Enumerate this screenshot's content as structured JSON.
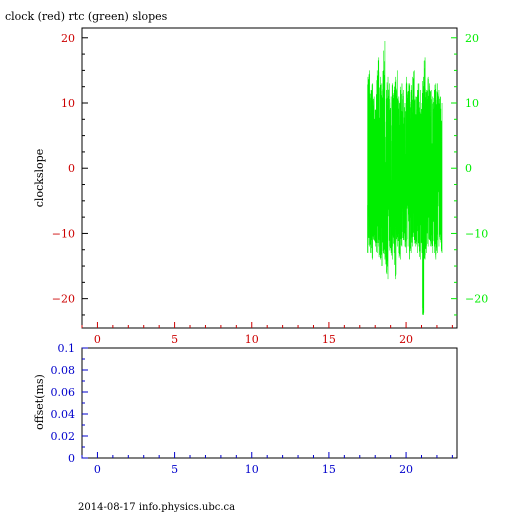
{
  "title": "clock (red) rtc (green) slopes",
  "footer": "2014-08-17  info.physics.ubc.ca",
  "colors": {
    "red": "#cc0000",
    "green": "#00ee00",
    "blue": "#0000cc",
    "axis": "#000000"
  },
  "chart_data": [
    {
      "type": "line",
      "ylabel": "clockslope",
      "xlim": [
        -1,
        23.3
      ],
      "ylim": [
        -24.5,
        21.5
      ],
      "x_ticks": [
        0,
        5,
        10,
        15,
        20
      ],
      "x_tick_labels": [
        "0",
        "5",
        "10",
        "15",
        "20"
      ],
      "y_ticks_left": [
        -20,
        -10,
        0,
        10,
        20
      ],
      "y_tick_labels_left": [
        "−20",
        "−10",
        "0",
        "10",
        "20"
      ],
      "y_ticks_right": [
        -20,
        -10,
        0,
        10,
        20
      ],
      "y_tick_labels_right": [
        "−20",
        "−10",
        "0",
        "10",
        "20"
      ],
      "grid": false,
      "series": [
        {
          "color": "green",
          "x_range": [
            17.5,
            22.3
          ],
          "y_range": [
            -22.5,
            19.5
          ],
          "x": [
            17.5,
            17.6,
            17.7,
            17.8,
            17.9,
            18.0,
            18.1,
            18.2,
            18.3,
            18.4,
            18.5,
            18.6,
            18.7,
            18.8,
            18.9,
            19.0,
            19.1,
            19.2,
            19.3,
            19.4,
            19.5,
            19.6,
            19.7,
            19.8,
            19.9,
            20.0,
            20.1,
            20.2,
            20.3,
            20.4,
            20.5,
            20.6,
            20.7,
            20.8,
            20.9,
            21.0,
            21.1,
            21.2,
            21.3,
            21.4,
            21.5,
            21.6,
            21.7,
            21.8,
            21.9,
            22.0,
            22.1,
            22.2,
            22.3
          ],
          "y_max": [
            14,
            15,
            12,
            13,
            11,
            9,
            15,
            17,
            14,
            13,
            15,
            19.5,
            12,
            14,
            13,
            11,
            13,
            12,
            14,
            15,
            11,
            12,
            13,
            12,
            10,
            14,
            13,
            13,
            12,
            14,
            15,
            11,
            12,
            13,
            12,
            10,
            14,
            17,
            12,
            14,
            13,
            12,
            11,
            12,
            13,
            13,
            12,
            11,
            10
          ],
          "y_min": [
            -13,
            -12,
            -13,
            -14,
            -11,
            -12,
            -13,
            -12,
            -14,
            -15,
            -13,
            -14,
            -16,
            -17,
            -12,
            -13,
            -14,
            -13,
            -17,
            -12,
            -13,
            -14,
            -12,
            -11,
            -12,
            -13,
            -12,
            -14,
            -13,
            -12,
            -11,
            -12,
            -13,
            -12,
            -14,
            -13,
            -22.5,
            -14,
            -13,
            -12,
            -11,
            -12,
            -13,
            -12,
            -14,
            -13,
            -12,
            -11,
            -13
          ]
        }
      ]
    },
    {
      "type": "line",
      "ylabel": "offset(ms)",
      "xlim": [
        -1,
        23.3
      ],
      "ylim": [
        0,
        0.1
      ],
      "x_ticks": [
        0,
        5,
        10,
        15,
        20
      ],
      "x_tick_labels": [
        "0",
        "5",
        "10",
        "15",
        "20"
      ],
      "y_ticks": [
        0,
        0.02,
        0.04,
        0.06,
        0.08,
        0.1
      ],
      "y_tick_labels": [
        "0",
        "0.02",
        "0.04",
        "0.06",
        "0.08",
        "0.1"
      ],
      "grid": false,
      "series": []
    }
  ]
}
